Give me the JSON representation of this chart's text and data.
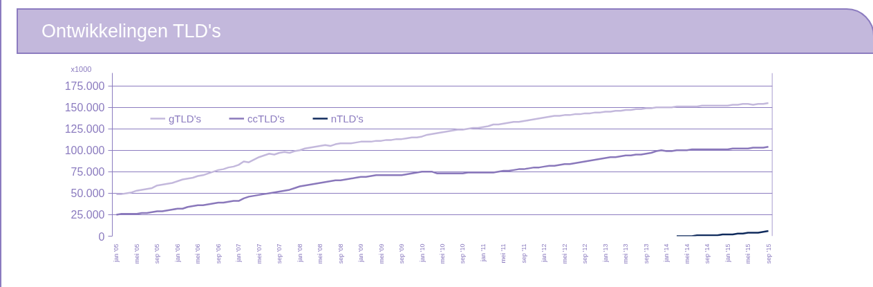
{
  "chart_data": {
    "type": "line",
    "title": "Ontwikkelingen TLD's",
    "ylabel": "x1000",
    "categories": [
      "jan '05",
      null,
      null,
      null,
      "mei '05",
      null,
      null,
      null,
      "sep '05",
      null,
      null,
      null,
      "jan '06",
      null,
      null,
      null,
      "mei '06",
      null,
      null,
      null,
      "sep '06",
      null,
      null,
      null,
      "jan '07",
      null,
      null,
      null,
      "mei '07",
      null,
      null,
      null,
      "sep '07",
      null,
      null,
      null,
      "jan '08",
      null,
      null,
      null,
      "mei '08",
      null,
      null,
      null,
      "sep '08",
      null,
      null,
      null,
      "jan '09",
      null,
      null,
      null,
      "mei '09",
      null,
      null,
      null,
      "sep '09",
      null,
      null,
      null,
      "jan '10",
      null,
      null,
      null,
      "mei '10",
      null,
      null,
      null,
      "sep '10",
      null,
      null,
      null,
      "jan '11",
      null,
      null,
      null,
      "mei '11",
      null,
      null,
      null,
      "sep '11",
      null,
      null,
      null,
      "jan '12",
      null,
      null,
      null,
      "mei '12",
      null,
      null,
      null,
      "sep '12",
      null,
      null,
      null,
      "jan '13",
      null,
      null,
      null,
      "mei '13",
      null,
      null,
      null,
      "sep '13",
      null,
      null,
      null,
      "jan '14",
      null,
      null,
      null,
      "mei '14",
      null,
      null,
      null,
      "sep '14",
      null,
      null,
      null,
      "jan '15",
      null,
      null,
      null,
      "mei '15",
      null,
      null,
      null,
      "sep '15"
    ],
    "series": [
      {
        "name": "gTLD's",
        "color": "#c3b8dc",
        "values": [
          49000,
          49000,
          50000,
          51000,
          53000,
          54000,
          55000,
          56000,
          59000,
          60000,
          61000,
          62000,
          64000,
          66000,
          67000,
          68000,
          70000,
          71000,
          73000,
          75000,
          77000,
          78000,
          80000,
          81000,
          83000,
          87000,
          86000,
          89000,
          92000,
          94000,
          96000,
          95000,
          97000,
          98000,
          97000,
          99000,
          100000,
          102000,
          103000,
          104000,
          105000,
          106000,
          105000,
          107000,
          108000,
          108000,
          108000,
          109000,
          110000,
          110000,
          110000,
          111000,
          111000,
          112000,
          112000,
          113000,
          113000,
          114000,
          115000,
          115000,
          116000,
          118000,
          119000,
          120000,
          121000,
          122000,
          123000,
          124000,
          124000,
          125000,
          126000,
          126000,
          127000,
          128000,
          130000,
          130000,
          131000,
          132000,
          133000,
          133000,
          134000,
          135000,
          136000,
          137000,
          138000,
          139000,
          140000,
          140000,
          141000,
          141000,
          142000,
          142000,
          143000,
          143000,
          144000,
          144000,
          145000,
          145000,
          146000,
          146000,
          147000,
          147000,
          148000,
          148000,
          149000,
          149000,
          150000,
          150000,
          150000,
          150000,
          151000,
          151000,
          151000,
          151000,
          151000,
          152000,
          152000,
          152000,
          152000,
          152000,
          152000,
          153000,
          153000,
          154000,
          154000,
          153000,
          154000,
          154000,
          155000
        ]
      },
      {
        "name": "ccTLD's",
        "color": "#8a78bb",
        "values": [
          25000,
          26000,
          26000,
          26000,
          26000,
          27000,
          27000,
          28000,
          29000,
          29000,
          30000,
          31000,
          32000,
          32000,
          34000,
          35000,
          36000,
          36000,
          37000,
          38000,
          39000,
          39000,
          40000,
          41000,
          41000,
          44000,
          46000,
          47000,
          48000,
          49000,
          50000,
          51000,
          52000,
          53000,
          54000,
          56000,
          58000,
          59000,
          60000,
          61000,
          62000,
          63000,
          64000,
          65000,
          65000,
          66000,
          67000,
          68000,
          69000,
          69000,
          70000,
          71000,
          71000,
          71000,
          71000,
          71000,
          71000,
          72000,
          73000,
          74000,
          75000,
          75000,
          75000,
          73000,
          73000,
          73000,
          73000,
          73000,
          73000,
          74000,
          74000,
          74000,
          74000,
          74000,
          74000,
          75000,
          76000,
          76000,
          77000,
          78000,
          78000,
          79000,
          80000,
          80000,
          81000,
          82000,
          82000,
          83000,
          84000,
          84000,
          85000,
          86000,
          87000,
          88000,
          89000,
          90000,
          91000,
          92000,
          92000,
          93000,
          94000,
          94000,
          95000,
          95000,
          96000,
          97000,
          99000,
          100000,
          99000,
          99000,
          100000,
          100000,
          100000,
          101000,
          101000,
          101000,
          101000,
          101000,
          101000,
          101000,
          101000,
          102000,
          102000,
          102000,
          102000,
          103000,
          103000,
          103000,
          104000
        ]
      },
      {
        "name": "nTLD's",
        "color": "#0f2a5c",
        "values": [
          null,
          null,
          null,
          null,
          null,
          null,
          null,
          null,
          null,
          null,
          null,
          null,
          null,
          null,
          null,
          null,
          null,
          null,
          null,
          null,
          null,
          null,
          null,
          null,
          null,
          null,
          null,
          null,
          null,
          null,
          null,
          null,
          null,
          null,
          null,
          null,
          null,
          null,
          null,
          null,
          null,
          null,
          null,
          null,
          null,
          null,
          null,
          null,
          null,
          null,
          null,
          null,
          null,
          null,
          null,
          null,
          null,
          null,
          null,
          null,
          null,
          null,
          null,
          null,
          null,
          null,
          null,
          null,
          null,
          null,
          null,
          null,
          null,
          null,
          null,
          null,
          null,
          null,
          null,
          null,
          null,
          null,
          null,
          null,
          null,
          null,
          null,
          null,
          null,
          null,
          null,
          null,
          null,
          null,
          null,
          null,
          null,
          null,
          null,
          null,
          null,
          null,
          null,
          null,
          null,
          null,
          null,
          null,
          null,
          null,
          0,
          0,
          0,
          0,
          1000,
          1000,
          1000,
          1000,
          1000,
          2000,
          2000,
          2000,
          3000,
          3000,
          4000,
          4000,
          4000,
          5000,
          6000
        ]
      }
    ],
    "ylim": [
      0,
      190000
    ],
    "yticks": [
      0,
      {
        "value": 25000,
        "label": "25.000"
      },
      {
        "value": 50000,
        "label": "50.000"
      },
      {
        "value": 75000,
        "label": "75.000"
      },
      {
        "value": 100000,
        "label": "100.000"
      },
      {
        "value": 125000,
        "label": "125.000"
      },
      {
        "value": 150000,
        "label": "150.000"
      },
      {
        "value": 175000,
        "label": "175.000"
      }
    ],
    "grid": "y",
    "legend": "top left",
    "marker": "none",
    "line_style": "solid"
  }
}
